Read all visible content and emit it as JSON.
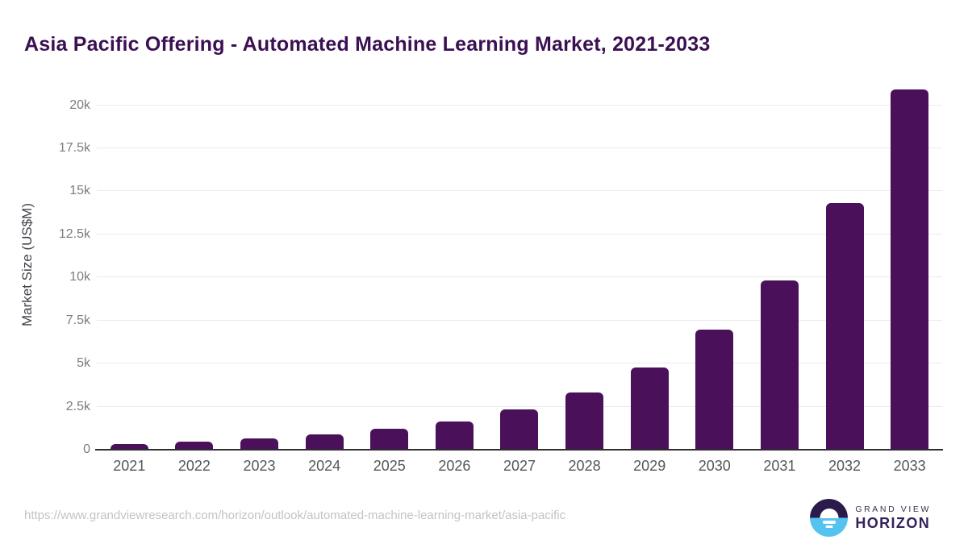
{
  "title": "Asia Pacific Offering - Automated Machine Learning Market, 2021-2033",
  "colors": {
    "bar": "#4a1059",
    "title": "#3b1053",
    "gridline": "#ebebeb",
    "axis": "#2e2e2e",
    "ytick_text": "#7a7d81",
    "xtick_text": "#53565a",
    "url_text": "#c3c3c3",
    "logo_dark": "#2b1b4d",
    "logo_blue": "#55c3f0"
  },
  "chart_data": {
    "type": "bar",
    "title": "Asia Pacific Offering - Automated Machine Learning Market, 2021-2033",
    "categories": [
      "2021",
      "2022",
      "2023",
      "2024",
      "2025",
      "2026",
      "2027",
      "2028",
      "2029",
      "2030",
      "2031",
      "2032",
      "2033"
    ],
    "values": [
      310,
      460,
      670,
      890,
      1200,
      1640,
      2340,
      3330,
      4790,
      6950,
      9830,
      14320,
      20900
    ],
    "xlabel": "",
    "ylabel": "Market Size (US$M)",
    "ylim": [
      0,
      21500
    ],
    "yticks": [
      0,
      2500,
      5000,
      7500,
      10000,
      12500,
      15000,
      17500,
      20000
    ],
    "ytick_labels": [
      "0",
      "2.5k",
      "5k",
      "7.5k",
      "10k",
      "12.5k",
      "15k",
      "17.5k",
      "20k"
    ],
    "grid": "horizontal",
    "legend": "none",
    "bar_color": "#4a1059"
  },
  "footer": {
    "source_url": "https://www.grandviewresearch.com/horizon/outlook/automated-machine-learning-market/asia-pacific",
    "logo": {
      "line1": "GRAND VIEW",
      "line2": "HORIZON"
    }
  }
}
